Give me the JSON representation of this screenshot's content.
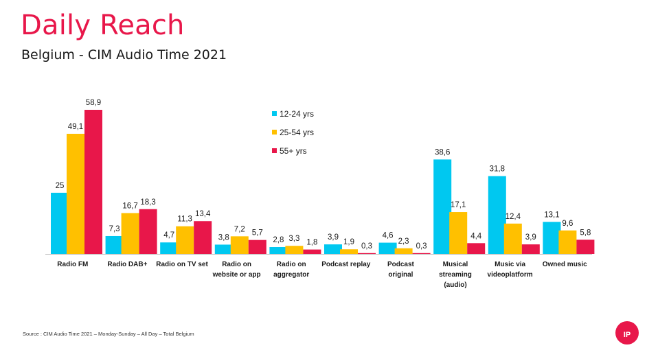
{
  "header": {
    "title": "Daily Reach",
    "subtitle": "Belgium - CIM Audio Time 2021"
  },
  "footer": {
    "source": "Source : CIM Audio Time 2021 – Monday-Sunday – All Day –   Total Belgium",
    "logo_text": "IP"
  },
  "colors": {
    "accent": "#e8174a",
    "series_12_24": "#00c8f0",
    "series_25_54": "#ffc000",
    "series_55_plus": "#e8174a"
  },
  "chart_data": {
    "type": "bar",
    "title": "Daily Reach",
    "subtitle": "Belgium - CIM Audio Time 2021",
    "categories": [
      [
        "Radio FM"
      ],
      [
        "Radio DAB+"
      ],
      [
        "Radio on TV set"
      ],
      [
        "Radio on",
        "website or app"
      ],
      [
        "Radio on",
        "aggregator"
      ],
      [
        "Podcast replay"
      ],
      [
        "Podcast",
        "original"
      ],
      [
        "Musical",
        "streaming",
        "(audio)"
      ],
      [
        "Music via",
        "videoplatform"
      ],
      [
        "Owned music"
      ]
    ],
    "series": [
      {
        "name": "12-24 yrs",
        "color": "#00c8f0",
        "values": [
          25,
          7.3,
          4.7,
          3.8,
          2.8,
          3.9,
          4.6,
          38.6,
          31.8,
          13.1
        ]
      },
      {
        "name": "25-54 yrs",
        "color": "#ffc000",
        "values": [
          49.1,
          16.7,
          11.3,
          7.2,
          3.3,
          1.9,
          2.3,
          17.1,
          12.4,
          9.6
        ]
      },
      {
        "name": "55+ yrs",
        "color": "#e8174a",
        "values": [
          58.9,
          18.3,
          13.4,
          5.7,
          1.8,
          0.3,
          0.3,
          4.4,
          3.9,
          5.8
        ]
      }
    ],
    "data_labels": [
      [
        "25",
        "7,3",
        "4,7",
        "3,8",
        "2,8",
        "3,9",
        "4,6",
        "38,6",
        "31,8",
        "13,1"
      ],
      [
        "49,1",
        "16,7",
        "11,3",
        "7,2",
        "3,3",
        "1,9",
        "2,3",
        "17,1",
        "12,4",
        "9,6"
      ],
      [
        "58,9",
        "18,3",
        "13,4",
        "5,7",
        "1,8",
        "0,3",
        "0,3",
        "4,4",
        "3,9",
        "5,8"
      ]
    ],
    "ylim": [
      0,
      58.9
    ],
    "grid": false,
    "legend": "top-center"
  }
}
